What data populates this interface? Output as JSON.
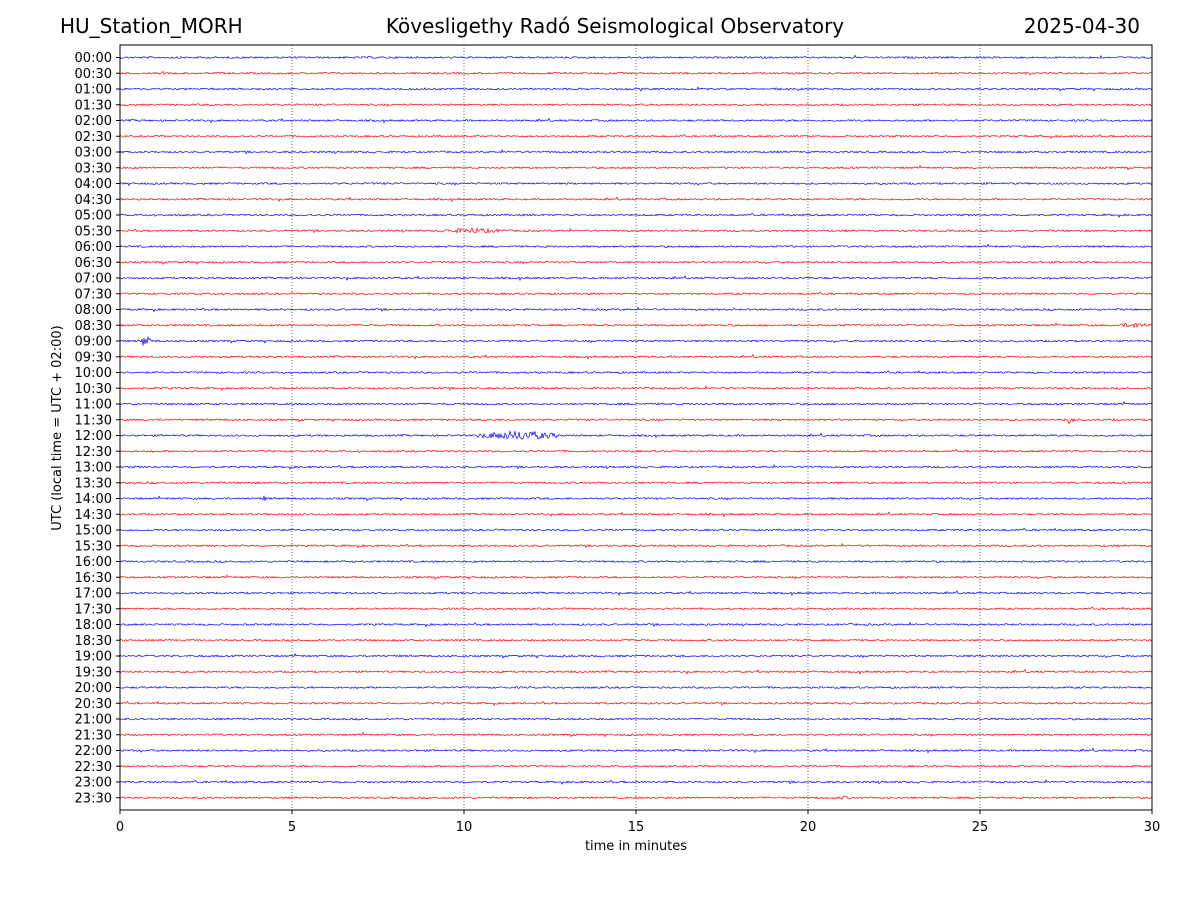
{
  "header": {
    "station": "HU_Station_MORH",
    "title": "Kövesligethy Radó Seismological Observatory",
    "date": "2025-04-30"
  },
  "chart_data": {
    "type": "line",
    "title": "Kövesligethy Radó Seismological Observatory",
    "xlabel": "time in minutes",
    "ylabel": "UTC (local time = UTC + 02:00)",
    "xlim": [
      0,
      30
    ],
    "x_ticks": [
      0,
      5,
      10,
      15,
      20,
      25,
      30
    ],
    "grid": "vertical dotted lines at x ticks",
    "row_labels": [
      "00:00",
      "00:30",
      "01:00",
      "01:30",
      "02:00",
      "02:30",
      "03:00",
      "03:30",
      "04:00",
      "04:30",
      "05:00",
      "05:30",
      "06:00",
      "06:30",
      "07:00",
      "07:30",
      "08:00",
      "08:30",
      "09:00",
      "09:30",
      "10:00",
      "10:30",
      "11:00",
      "11:30",
      "12:00",
      "12:30",
      "13:00",
      "13:30",
      "14:00",
      "14:30",
      "15:00",
      "15:30",
      "16:00",
      "16:30",
      "17:00",
      "17:30",
      "18:00",
      "18:30",
      "19:00",
      "19:30",
      "20:00",
      "20:30",
      "21:00",
      "21:30",
      "22:00",
      "22:30",
      "23:00",
      "23:30"
    ],
    "trace_colors": [
      "#0000ff",
      "#ff0000"
    ],
    "events": [
      {
        "row": "05:30",
        "minute_start": 9.3,
        "minute_end": 11.2,
        "amplitude": 3
      },
      {
        "row": "08:30",
        "minute_start": 29.0,
        "minute_end": 30.0,
        "amplitude": 3
      },
      {
        "row": "09:00",
        "minute_start": 0.6,
        "minute_end": 0.9,
        "amplitude": 7
      },
      {
        "row": "11:30",
        "minute_start": 27.4,
        "minute_end": 27.8,
        "amplitude": 4
      },
      {
        "row": "12:00",
        "minute_start": 10.4,
        "minute_end": 12.8,
        "amplitude": 5
      },
      {
        "row": "14:00",
        "minute_start": 4.1,
        "minute_end": 4.3,
        "amplitude": 2.5
      },
      {
        "row": "23:30",
        "minute_start": 20.8,
        "minute_end": 21.3,
        "amplitude": 2
      }
    ]
  }
}
